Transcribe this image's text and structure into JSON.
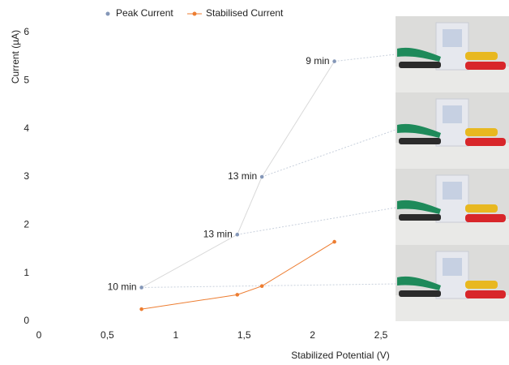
{
  "chart_data": {
    "type": "line",
    "x_label": "Stabilized Potential (V)",
    "y_label": "Current (µA)",
    "series": [
      {
        "name": "Peak Current",
        "color": "#8497b8",
        "x": [
          0.75,
          1.45,
          1.63,
          2.16
        ],
        "values": [
          0.7,
          1.8,
          3.0,
          5.4
        ],
        "point_labels": [
          "10 min",
          "13 min",
          "13 min",
          "9 min"
        ]
      },
      {
        "name": "Stabilised Current",
        "color": "#ed7d31",
        "x": [
          0.75,
          1.45,
          1.63,
          2.16
        ],
        "values": [
          0.25,
          0.55,
          0.73,
          1.65
        ]
      }
    ],
    "xlim": [
      0,
      2.5
    ],
    "xticks": [
      0,
      {
        "value": 0.5,
        "label": "0,5"
      },
      1,
      {
        "value": 1.5,
        "label": "1,5"
      },
      2,
      {
        "value": 2.5,
        "label": "2,5"
      }
    ],
    "ylim": [
      0,
      6
    ],
    "yticks": [
      0,
      1,
      2,
      3,
      4,
      5,
      6
    ],
    "legend": "top"
  }
}
